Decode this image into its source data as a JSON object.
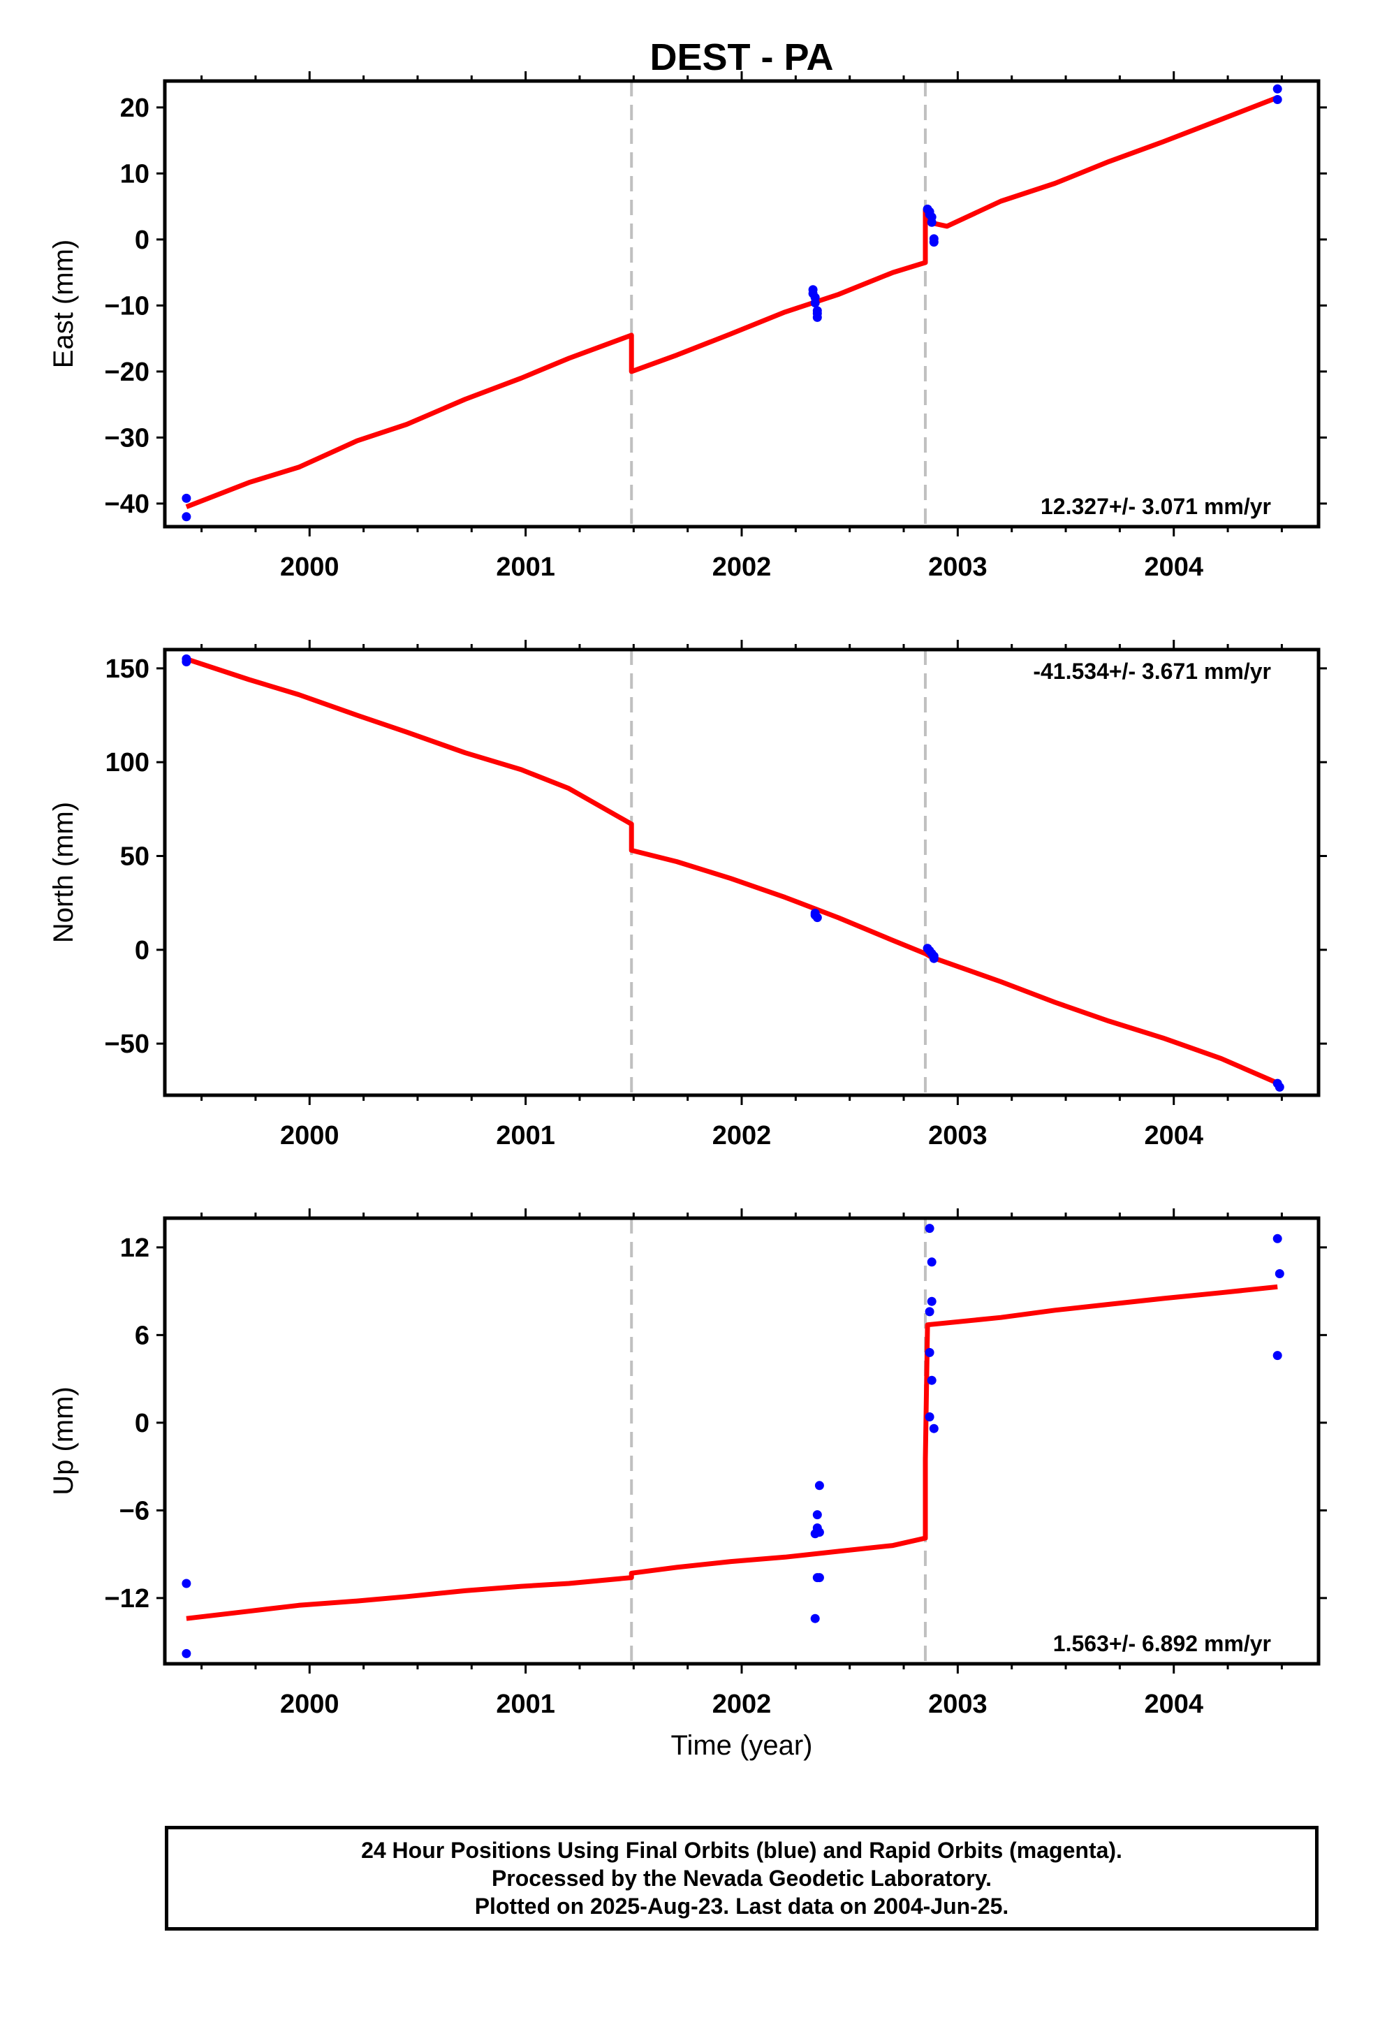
{
  "title": "DEST - PA",
  "x_axis_label": "Time (year)",
  "footer": {
    "lines": [
      "24 Hour Positions Using Final Orbits (blue) and Rapid Orbits (magenta).",
      "Processed by the Nevada Geodetic Laboratory.",
      "Plotted on 2025-Aug-23. Last data on 2004-Jun-25."
    ]
  },
  "colors": {
    "fit": "#ff0000",
    "data": "#0000ff",
    "breaks": "#c0c0c0",
    "frame": "#000000"
  },
  "chart_data": [
    {
      "type": "scatter",
      "name": "east",
      "ylabel": "East (mm)",
      "xlim": [
        1999.33,
        2004.67
      ],
      "ylim": [
        -43.5,
        24
      ],
      "yticks": [
        20,
        10,
        0,
        -10,
        -20,
        -30,
        -40
      ],
      "xticks": [
        2000,
        2001,
        2002,
        2003,
        2004
      ],
      "rate_text": "12.327+/- 3.071 mm/yr",
      "rate_position": "bottom-right",
      "breaks": [
        2001.49,
        2002.85
      ],
      "fit": [
        [
          1999.43,
          -40.5
        ],
        [
          1999.72,
          -36.8
        ],
        [
          1999.95,
          -34.5
        ],
        [
          2000.22,
          -30.5
        ],
        [
          2000.45,
          -28
        ],
        [
          2000.72,
          -24.2
        ],
        [
          2000.98,
          -21
        ],
        [
          2001.2,
          -18
        ],
        [
          2001.49,
          -14.5
        ],
        [
          2001.49,
          -20
        ],
        [
          2001.7,
          -17.5
        ],
        [
          2001.95,
          -14.3
        ],
        [
          2002.2,
          -11
        ],
        [
          2002.45,
          -8.3
        ],
        [
          2002.7,
          -5
        ],
        [
          2002.85,
          -3.5
        ],
        [
          2002.85,
          4.5
        ],
        [
          2002.88,
          2.5
        ],
        [
          2002.95,
          2
        ],
        [
          2003.2,
          5.8
        ],
        [
          2003.45,
          8.5
        ],
        [
          2003.7,
          11.8
        ],
        [
          2003.95,
          14.8
        ],
        [
          2004.22,
          18.2
        ],
        [
          2004.48,
          21.5
        ]
      ],
      "points": [
        [
          1999.43,
          -39.2
        ],
        [
          1999.43,
          -42
        ],
        [
          2002.33,
          -7.6
        ],
        [
          2002.33,
          -8.2
        ],
        [
          2002.34,
          -8.8
        ],
        [
          2002.34,
          -9.6
        ],
        [
          2002.35,
          -10.8
        ],
        [
          2002.35,
          -11.2
        ],
        [
          2002.35,
          -11.8
        ],
        [
          2002.86,
          4.6
        ],
        [
          2002.87,
          4.2
        ],
        [
          2002.87,
          3.8
        ],
        [
          2002.88,
          3.4
        ],
        [
          2002.88,
          2.6
        ],
        [
          2002.89,
          0.1
        ],
        [
          2002.89,
          -0.4
        ],
        [
          2004.48,
          22.8
        ],
        [
          2004.48,
          21.2
        ]
      ]
    },
    {
      "type": "scatter",
      "name": "north",
      "ylabel": "North (mm)",
      "xlim": [
        1999.33,
        2004.67
      ],
      "ylim": [
        -77.5,
        160
      ],
      "yticks": [
        150,
        100,
        50,
        0,
        -50
      ],
      "xticks": [
        2000,
        2001,
        2002,
        2003,
        2004
      ],
      "rate_text": "-41.534+/- 3.671 mm/yr",
      "rate_position": "top-right",
      "breaks": [
        2001.49,
        2002.85
      ],
      "fit": [
        [
          1999.43,
          155
        ],
        [
          1999.72,
          144
        ],
        [
          1999.95,
          136
        ],
        [
          2000.22,
          125
        ],
        [
          2000.45,
          116
        ],
        [
          2000.72,
          105
        ],
        [
          2000.98,
          96
        ],
        [
          2001.2,
          86
        ],
        [
          2001.49,
          67
        ],
        [
          2001.49,
          53
        ],
        [
          2001.7,
          47
        ],
        [
          2001.95,
          38
        ],
        [
          2002.2,
          28
        ],
        [
          2002.45,
          17
        ],
        [
          2002.7,
          5
        ],
        [
          2002.85,
          -2
        ],
        [
          2002.88,
          -4
        ],
        [
          2003.2,
          -17
        ],
        [
          2003.45,
          -28
        ],
        [
          2003.7,
          -38
        ],
        [
          2003.95,
          -47
        ],
        [
          2004.22,
          -58
        ],
        [
          2004.48,
          -71
        ]
      ],
      "points": [
        [
          1999.43,
          155
        ],
        [
          1999.43,
          153.5
        ],
        [
          2002.34,
          19.5
        ],
        [
          2002.34,
          18.5
        ],
        [
          2002.35,
          17.2
        ],
        [
          2002.86,
          0.8
        ],
        [
          2002.87,
          -0.5
        ],
        [
          2002.88,
          -2
        ],
        [
          2002.89,
          -3.4
        ],
        [
          2002.89,
          -4.6
        ],
        [
          2004.48,
          -71.2
        ],
        [
          2004.49,
          -73.2
        ]
      ]
    },
    {
      "type": "scatter",
      "name": "up",
      "ylabel": "Up (mm)",
      "xlim": [
        1999.33,
        2004.67
      ],
      "ylim": [
        -16.5,
        14
      ],
      "yticks": [
        12,
        6,
        0,
        -6,
        -12
      ],
      "xticks": [
        2000,
        2001,
        2002,
        2003,
        2004
      ],
      "rate_text": "1.563+/- 6.892 mm/yr",
      "rate_position": "bottom-right",
      "breaks": [
        2001.49,
        2002.85
      ],
      "fit": [
        [
          1999.43,
          -13.4
        ],
        [
          1999.72,
          -12.9
        ],
        [
          1999.95,
          -12.5
        ],
        [
          2000.22,
          -12.2
        ],
        [
          2000.45,
          -11.9
        ],
        [
          2000.72,
          -11.5
        ],
        [
          2000.98,
          -11.2
        ],
        [
          2001.2,
          -11
        ],
        [
          2001.49,
          -10.6
        ],
        [
          2001.49,
          -10.3
        ],
        [
          2001.7,
          -9.9
        ],
        [
          2001.95,
          -9.5
        ],
        [
          2002.2,
          -9.2
        ],
        [
          2002.45,
          -8.8
        ],
        [
          2002.7,
          -8.4
        ],
        [
          2002.85,
          -7.9
        ],
        [
          2002.85,
          -2.5
        ],
        [
          2002.86,
          6.7
        ],
        [
          2003.2,
          7.2
        ],
        [
          2003.45,
          7.7
        ],
        [
          2003.7,
          8.1
        ],
        [
          2003.95,
          8.5
        ],
        [
          2004.22,
          8.9
        ],
        [
          2004.48,
          9.3
        ]
      ],
      "points": [
        [
          1999.43,
          -11
        ],
        [
          1999.43,
          -15.8
        ],
        [
          2002.34,
          -7.6
        ],
        [
          2002.34,
          -13.4
        ],
        [
          2002.35,
          -6.3
        ],
        [
          2002.35,
          -7.2
        ],
        [
          2002.36,
          -7.5
        ],
        [
          2002.35,
          -10.6
        ],
        [
          2002.36,
          -10.6
        ],
        [
          2002.36,
          -4.3
        ],
        [
          2002.87,
          13.3
        ],
        [
          2002.88,
          11
        ],
        [
          2002.88,
          8.3
        ],
        [
          2002.87,
          7.6
        ],
        [
          2002.87,
          4.8
        ],
        [
          2002.88,
          2.9
        ],
        [
          2002.87,
          0.4
        ],
        [
          2002.89,
          -0.4
        ],
        [
          2004.48,
          12.6
        ],
        [
          2004.49,
          10.2
        ],
        [
          2004.48,
          4.6
        ]
      ]
    }
  ]
}
